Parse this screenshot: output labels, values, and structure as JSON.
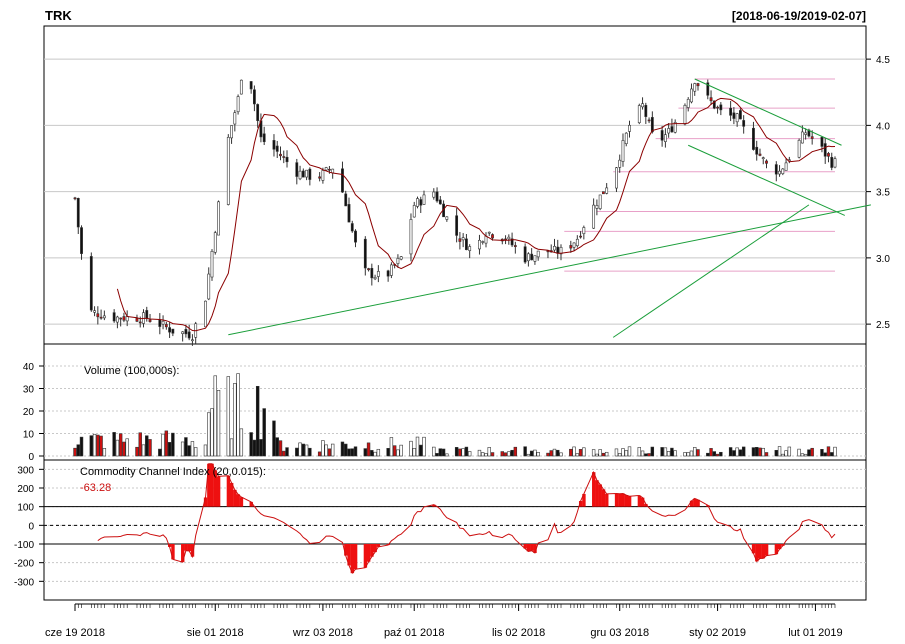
{
  "chart_data": {
    "type": "candlestick",
    "title": "TRK",
    "date_range": "[2018-06-19/2019-02-07]",
    "grid": true,
    "x_tick_labels": [
      {
        "label": "cze 19 2018",
        "day": 0
      },
      {
        "label": "sie 01 2018",
        "day": 43
      },
      {
        "label": "wrz 03 2018",
        "day": 76
      },
      {
        "label": "paź 01 2018",
        "day": 104
      },
      {
        "label": "lis 02 2018",
        "day": 136
      },
      {
        "label": "gru 03 2018",
        "day": 167
      },
      {
        "label": "sty 02 2019",
        "day": 197
      },
      {
        "label": "lut 01 2019",
        "day": 227
      }
    ],
    "price_panel": {
      "ylim": [
        2.35,
        4.75
      ],
      "y_ticks": [
        "2.5",
        "3.0",
        "3.5",
        "4.0",
        "4.5"
      ],
      "sma_color": "#8b0000",
      "trendline_color": "#1a9e3a",
      "level_color": "#e8a0c8",
      "up_color": "#ffffff",
      "down_color": "#cc1010",
      "bear_color": "#111111",
      "trendlines": [
        {
          "x1": 165,
          "y1": 2.4,
          "x2": 225,
          "y2": 3.4
        },
        {
          "x1": 190,
          "y1": 4.35,
          "x2": 235,
          "y2": 3.85
        },
        {
          "x1": 188,
          "y1": 3.85,
          "x2": 236,
          "y2": 3.32
        },
        {
          "x1": 47,
          "y1": 2.42,
          "x2": 244,
          "y2": 3.4
        }
      ],
      "levels": [
        {
          "y": 4.35,
          "from": 190
        },
        {
          "y": 4.13,
          "from": 185
        },
        {
          "y": 3.9,
          "from": 178
        },
        {
          "y": 3.65,
          "from": 165
        },
        {
          "y": 3.35,
          "from": 160
        },
        {
          "y": 3.2,
          "from": 150
        },
        {
          "y": 2.9,
          "from": 150
        }
      ]
    },
    "volume_panel": {
      "label": "Volume (100,000s):",
      "ylim": [
        0,
        48
      ],
      "y_ticks": [
        "0",
        "10",
        "20",
        "30",
        "40"
      ]
    },
    "cci_panel": {
      "label": "Commodity Channel Index (20,0.015):",
      "last_value": "-63.28",
      "value_color": "#cc1010",
      "ylim": [
        -400,
        350
      ],
      "y_ticks": [
        "-300",
        "-200",
        "-100",
        "0",
        "100",
        "200",
        "300"
      ],
      "ref_lines": [
        100,
        0,
        -100
      ]
    }
  }
}
